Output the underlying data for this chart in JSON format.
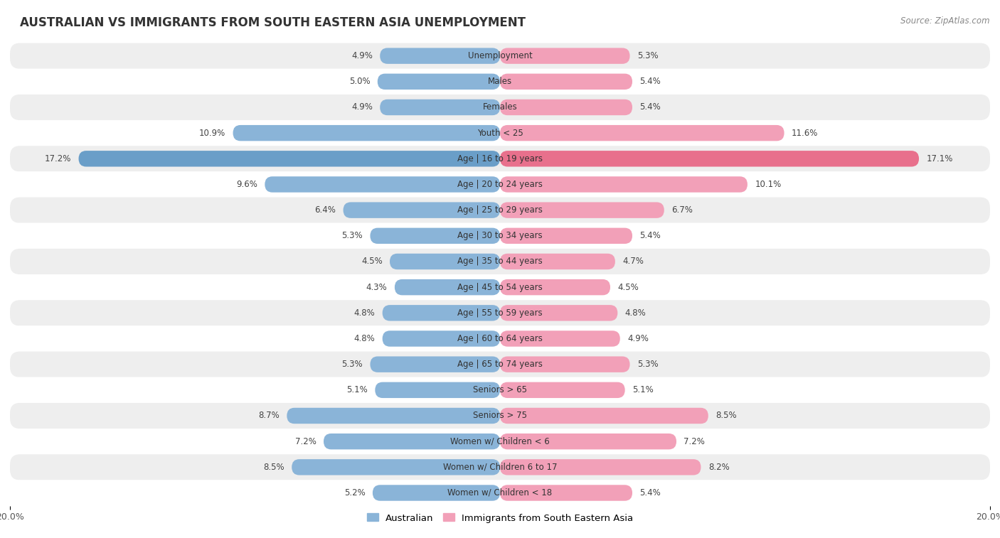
{
  "title": "AUSTRALIAN VS IMMIGRANTS FROM SOUTH EASTERN ASIA UNEMPLOYMENT",
  "source": "Source: ZipAtlas.com",
  "categories": [
    "Unemployment",
    "Males",
    "Females",
    "Youth < 25",
    "Age | 16 to 19 years",
    "Age | 20 to 24 years",
    "Age | 25 to 29 years",
    "Age | 30 to 34 years",
    "Age | 35 to 44 years",
    "Age | 45 to 54 years",
    "Age | 55 to 59 years",
    "Age | 60 to 64 years",
    "Age | 65 to 74 years",
    "Seniors > 65",
    "Seniors > 75",
    "Women w/ Children < 6",
    "Women w/ Children 6 to 17",
    "Women w/ Children < 18"
  ],
  "australian": [
    4.9,
    5.0,
    4.9,
    10.9,
    17.2,
    9.6,
    6.4,
    5.3,
    4.5,
    4.3,
    4.8,
    4.8,
    5.3,
    5.1,
    8.7,
    7.2,
    8.5,
    5.2
  ],
  "immigrants": [
    5.3,
    5.4,
    5.4,
    11.6,
    17.1,
    10.1,
    6.7,
    5.4,
    4.7,
    4.5,
    4.8,
    4.9,
    5.3,
    5.1,
    8.5,
    7.2,
    8.2,
    5.4
  ],
  "australian_color": "#8ab4d8",
  "immigrants_color": "#f2a0b8",
  "australian_color_highlight": "#6a9ec8",
  "immigrants_color_highlight": "#e8708c",
  "background_row_light": "#eeeeee",
  "background_row_white": "#ffffff",
  "xlim": 20.0,
  "bar_height": 0.62,
  "legend_labels": [
    "Australian",
    "Immigrants from South Eastern Asia"
  ]
}
